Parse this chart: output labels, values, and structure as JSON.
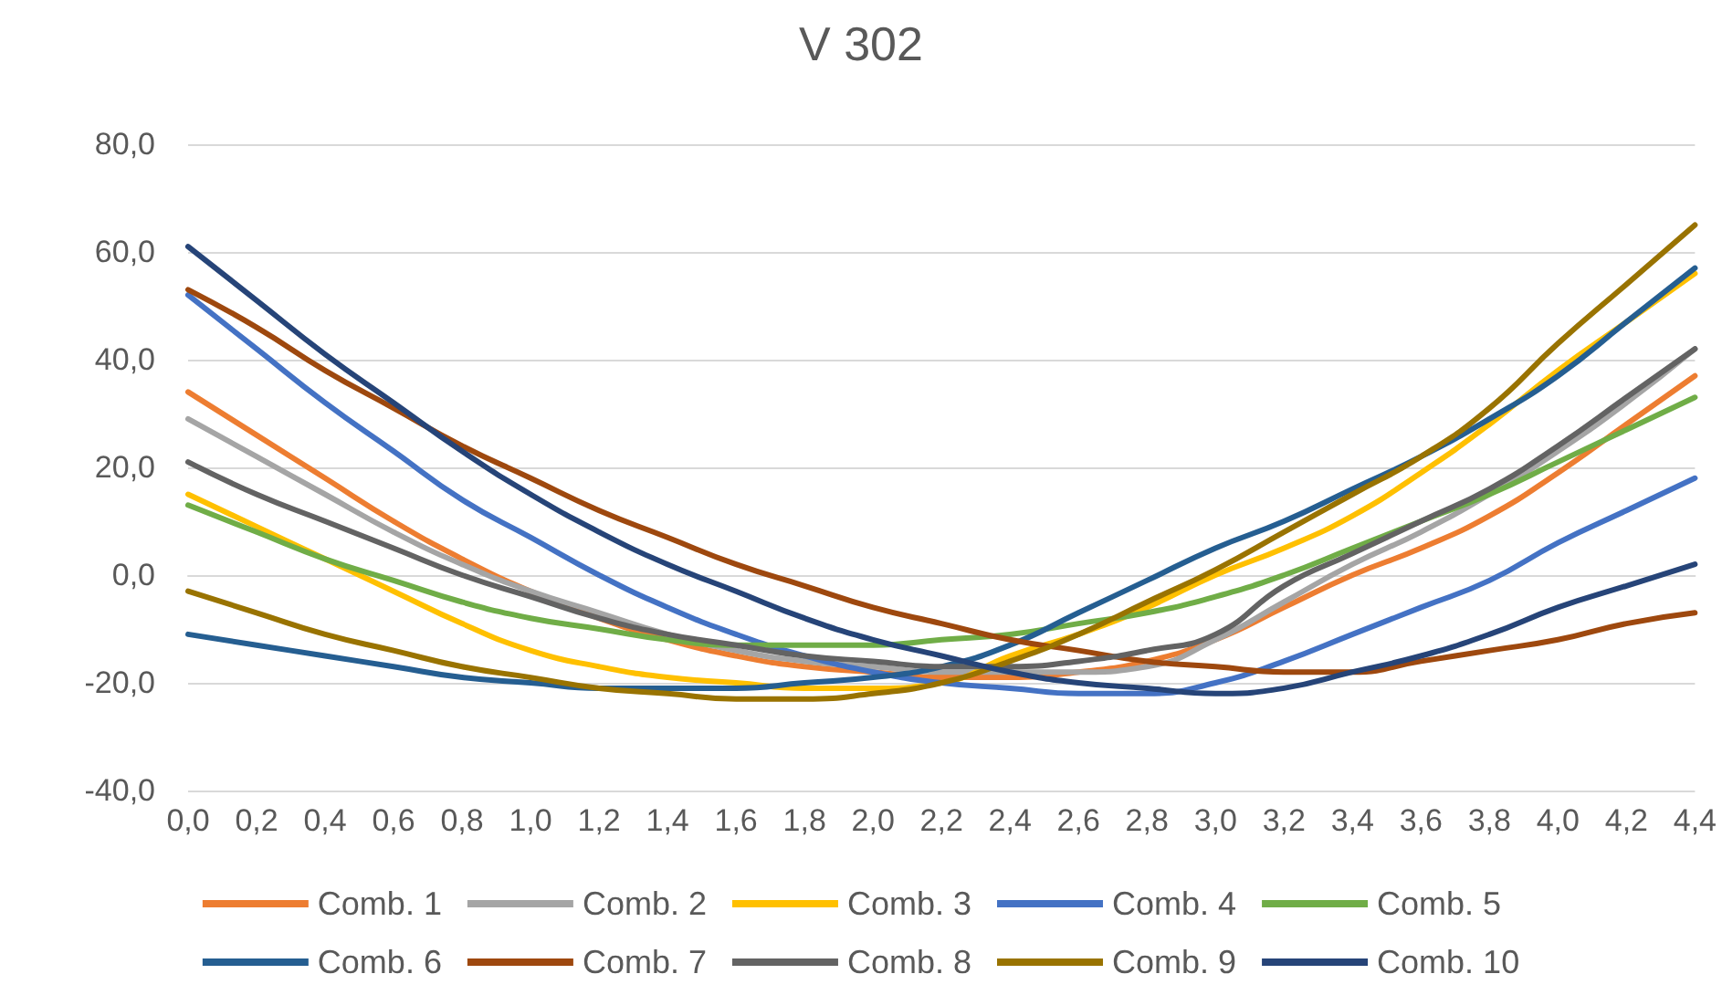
{
  "chart_data": {
    "type": "line",
    "title": "V 302",
    "categories": [
      "0,0",
      "0,2",
      "0,4",
      "0,6",
      "0,8",
      "1,0",
      "1,2",
      "1,4",
      "1,6",
      "1,8",
      "2,0",
      "2,2",
      "2,4",
      "2,6",
      "2,8",
      "3,0",
      "3,2",
      "3,4",
      "3,6",
      "3,8",
      "4,0",
      "4,2",
      "4,4"
    ],
    "ylim": [
      -40,
      80
    ],
    "yticks": [
      {
        "value": -40,
        "label": "-40,0"
      },
      {
        "value": -20,
        "label": "-20,0"
      },
      {
        "value": 0,
        "label": "0,0"
      },
      {
        "value": 20,
        "label": "20,0"
      },
      {
        "value": 40,
        "label": "40,0"
      },
      {
        "value": 60,
        "label": "60,0"
      },
      {
        "value": 80,
        "label": "80,0"
      }
    ],
    "grid": "y",
    "legend": "bottom",
    "marker": "none",
    "line_style": "solid",
    "series": [
      {
        "name": "Comb. 1",
        "color": "#ed7d31",
        "values": [
          34,
          26,
          18,
          10,
          3,
          -3,
          -8,
          -12,
          -15,
          -17,
          -18,
          -19,
          -19,
          -18,
          -16,
          -12,
          -6,
          0,
          5,
          11,
          19,
          28,
          37
        ]
      },
      {
        "name": "Comb. 2",
        "color": "#a5a5a5",
        "values": [
          29,
          22,
          15,
          8,
          2,
          -3,
          -7,
          -11,
          -14,
          -16,
          -17,
          -18,
          -18,
          -18,
          -17,
          -12,
          -5,
          2,
          8,
          15,
          23,
          32,
          42
        ]
      },
      {
        "name": "Comb. 3",
        "color": "#ffc000",
        "values": [
          15,
          9,
          3,
          -3,
          -9,
          -14,
          -17,
          -19,
          -20,
          -21,
          -21,
          -20,
          -15,
          -11,
          -6,
          0,
          5,
          11,
          19,
          28,
          38,
          47,
          56
        ]
      },
      {
        "name": "Comb. 4",
        "color": "#4472c4",
        "values": [
          52,
          42,
          32,
          23,
          14,
          7,
          0,
          -6,
          -11,
          -15,
          -18,
          -20,
          -21,
          -22,
          -22,
          -20,
          -16,
          -11,
          -6,
          -1,
          6,
          12,
          18
        ]
      },
      {
        "name": "Comb. 5",
        "color": "#70ad47",
        "values": [
          13,
          8,
          3,
          -1,
          -5,
          -8,
          -10,
          -12,
          -13,
          -13,
          -13,
          -12,
          -11,
          -9,
          -7,
          -4,
          0,
          5,
          10,
          15,
          21,
          27,
          33
        ]
      },
      {
        "name": "Comb. 6",
        "color": "#255e91",
        "values": [
          -11,
          -13,
          -15,
          -17,
          -19,
          -20,
          -21,
          -21,
          -21,
          -20,
          -19,
          -17,
          -13,
          -7,
          -1,
          5,
          10,
          16,
          22,
          29,
          37,
          47,
          57
        ]
      },
      {
        "name": "Comb. 7",
        "color": "#9e480e",
        "values": [
          53,
          46,
          38,
          31,
          24,
          18,
          12,
          7,
          2,
          -2,
          -6,
          -9,
          -12,
          -14,
          -16,
          -17,
          -18,
          -18,
          -16,
          -14,
          -12,
          -9,
          -7
        ]
      },
      {
        "name": "Comb. 8",
        "color": "#636363",
        "values": [
          21,
          15,
          10,
          5,
          0,
          -4,
          -8,
          -11,
          -13,
          -15,
          -16,
          -17,
          -17,
          -16,
          -14,
          -11,
          -2,
          4,
          10,
          16,
          24,
          33,
          42
        ]
      },
      {
        "name": "Comb. 9",
        "color": "#997300",
        "values": [
          -3,
          -7,
          -11,
          -14,
          -17,
          -19,
          -21,
          -22,
          -23,
          -23,
          -22,
          -20,
          -16,
          -11,
          -5,
          1,
          8,
          15,
          22,
          31,
          43,
          54,
          65
        ]
      },
      {
        "name": "Comb. 10",
        "color": "#264478",
        "values": [
          61,
          51,
          41,
          32,
          23,
          15,
          8,
          2,
          -3,
          -8,
          -12,
          -15,
          -18,
          -20,
          -21,
          -22,
          -21,
          -18,
          -15,
          -11,
          -6,
          -2,
          2
        ]
      }
    ]
  }
}
